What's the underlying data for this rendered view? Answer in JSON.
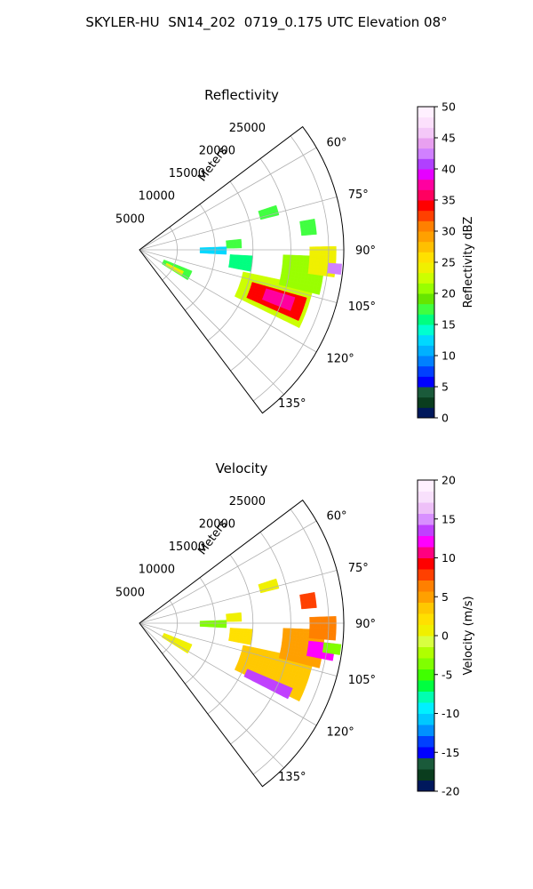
{
  "figure": {
    "suptitle": "SKYLER-HU  SN14_202  0719_0.175 UTC Elevation 08°"
  },
  "chart_data": [
    {
      "type": "polar-sector-heatmap",
      "title": "Reflectivity",
      "radial_label": "Meters",
      "radial_ticks": [
        5000,
        10000,
        15000,
        20000,
        25000
      ],
      "rlim": [
        0,
        27000
      ],
      "theta_ticks": [
        "60°",
        "75°",
        "90°",
        "105°",
        "120°",
        "135°"
      ],
      "theta_range_deg": [
        53,
        143
      ],
      "colorbar": {
        "label": "Reflectivity dBZ",
        "range": [
          0,
          50
        ],
        "ticks": [
          0,
          5,
          10,
          15,
          20,
          25,
          30,
          35,
          40,
          45,
          50
        ],
        "colors": [
          "#00185c",
          "#0a3d1e",
          "#1a5a3a",
          "#0000ff",
          "#0040ff",
          "#0080ff",
          "#00b0ff",
          "#00d8ff",
          "#00ffd0",
          "#00ff80",
          "#40ff40",
          "#66e600",
          "#99ff00",
          "#ccff00",
          "#f0f000",
          "#ffe000",
          "#ffc000",
          "#ffa000",
          "#ff8000",
          "#ff4000",
          "#ff0000",
          "#ff0060",
          "#ff00a0",
          "#e600ff",
          "#b040ff",
          "#d080ff",
          "#e8a0f0",
          "#f4c8f8",
          "#fce0fc",
          "#fff0ff"
        ]
      },
      "echo_regions": [
        {
          "r": [
            3500,
            7500
          ],
          "theta": [
            112,
            122
          ],
          "value": 18
        },
        {
          "r": [
            4000,
            6500
          ],
          "theta": [
            116,
            121
          ],
          "value": 24
        },
        {
          "r": [
            14000,
            23500
          ],
          "theta": [
            102,
            116
          ],
          "value": 22
        },
        {
          "r": [
            15500,
            23000
          ],
          "theta": [
            106,
            114
          ],
          "value": 34
        },
        {
          "r": [
            17500,
            21500
          ],
          "theta": [
            107,
            112
          ],
          "value": 38
        },
        {
          "r": [
            19000,
            24500
          ],
          "theta": [
            92,
            104
          ],
          "value": 20
        },
        {
          "r": [
            22500,
            26000
          ],
          "theta": [
            89,
            98
          ],
          "value": 24
        },
        {
          "r": [
            25000,
            26800
          ],
          "theta": [
            94,
            97
          ],
          "value": 42
        },
        {
          "r": [
            12000,
            15000
          ],
          "theta": [
            93,
            101
          ],
          "value": 16
        },
        {
          "r": [
            11500,
            13500
          ],
          "theta": [
            84,
            89
          ],
          "value": 17
        },
        {
          "r": [
            16500,
            19000
          ],
          "theta": [
            72,
            76
          ],
          "value": 17
        },
        {
          "r": [
            21500,
            23500
          ],
          "theta": [
            80,
            85
          ],
          "value": 18
        },
        {
          "r": [
            8000,
            11500
          ],
          "theta": [
            88,
            93
          ],
          "value": 12
        }
      ]
    },
    {
      "type": "polar-sector-heatmap",
      "title": "Velocity",
      "radial_label": "Meters",
      "radial_ticks": [
        5000,
        10000,
        15000,
        20000,
        25000
      ],
      "rlim": [
        0,
        27000
      ],
      "theta_ticks": [
        "60°",
        "75°",
        "90°",
        "105°",
        "120°",
        "135°"
      ],
      "theta_range_deg": [
        53,
        143
      ],
      "colorbar": {
        "label": "Velocity (m/s)",
        "range": [
          -20,
          20
        ],
        "ticks": [
          -20,
          -15,
          -10,
          -5,
          0,
          5,
          10,
          15,
          20
        ],
        "colors": [
          "#00185c",
          "#0a3d1e",
          "#1a5a3a",
          "#0000ff",
          "#0040ff",
          "#0090ff",
          "#00c8ff",
          "#00f0ff",
          "#00ffb0",
          "#00ff40",
          "#40ff00",
          "#80ff00",
          "#b0ff00",
          "#d8ff40",
          "#f0f000",
          "#ffe000",
          "#ffc800",
          "#ffa000",
          "#ff8000",
          "#ff4000",
          "#ff0000",
          "#ff0080",
          "#ff00ff",
          "#c040ff",
          "#d890ff",
          "#eec0f8",
          "#f8e0fc",
          "#fff0ff"
        ]
      },
      "echo_regions": [
        {
          "r": [
            3500,
            7500
          ],
          "theta": [
            112,
            122
          ],
          "value": 1
        },
        {
          "r": [
            14000,
            23500
          ],
          "theta": [
            102,
            116
          ],
          "value": 3
        },
        {
          "r": [
            15500,
            22000
          ],
          "theta": [
            113,
            117
          ],
          "value": 14
        },
        {
          "r": [
            19000,
            24500
          ],
          "theta": [
            92,
            104
          ],
          "value": 5
        },
        {
          "r": [
            22500,
            26000
          ],
          "theta": [
            96,
            101
          ],
          "value": 12
        },
        {
          "r": [
            22500,
            26000
          ],
          "theta": [
            88,
            95
          ],
          "value": 7
        },
        {
          "r": [
            24500,
            26800
          ],
          "theta": [
            96,
            99
          ],
          "value": -3
        },
        {
          "r": [
            12000,
            15000
          ],
          "theta": [
            93,
            101
          ],
          "value": 2
        },
        {
          "r": [
            11500,
            13500
          ],
          "theta": [
            84,
            89
          ],
          "value": 1
        },
        {
          "r": [
            16500,
            19000
          ],
          "theta": [
            72,
            76
          ],
          "value": 0
        },
        {
          "r": [
            21500,
            23500
          ],
          "theta": [
            80,
            85
          ],
          "value": 8
        },
        {
          "r": [
            8000,
            11500
          ],
          "theta": [
            88,
            93
          ],
          "value": -3
        }
      ]
    }
  ]
}
